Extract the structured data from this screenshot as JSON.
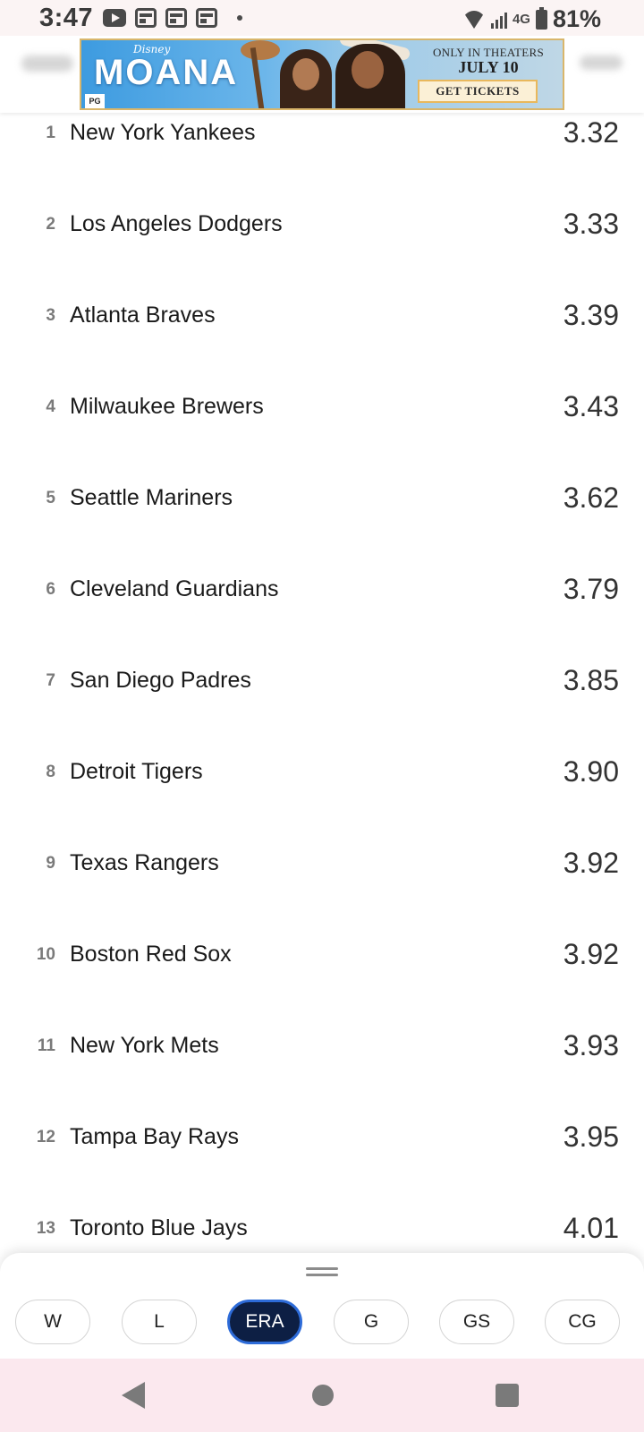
{
  "status_bar": {
    "time": "3:47",
    "network": "4G",
    "battery": "81%",
    "icons_left": [
      "youtube-icon",
      "news-icon",
      "news-icon",
      "news-icon",
      "dot-icon"
    ],
    "icons_right": [
      "wifi-icon",
      "signal-icon",
      "battery-icon"
    ]
  },
  "ad": {
    "brand": "Disney",
    "title": "MOANA",
    "rating": "PG",
    "tagline": "ONLY IN THEATERS",
    "date": "JULY 10",
    "cta": "GET TICKETS"
  },
  "rows": [
    {
      "rank": "1",
      "team": "New York Yankees",
      "value": "3.32"
    },
    {
      "rank": "2",
      "team": "Los Angeles Dodgers",
      "value": "3.33"
    },
    {
      "rank": "3",
      "team": "Atlanta Braves",
      "value": "3.39"
    },
    {
      "rank": "4",
      "team": "Milwaukee Brewers",
      "value": "3.43"
    },
    {
      "rank": "5",
      "team": "Seattle Mariners",
      "value": "3.62"
    },
    {
      "rank": "6",
      "team": "Cleveland Guardians",
      "value": "3.79"
    },
    {
      "rank": "7",
      "team": "San Diego Padres",
      "value": "3.85"
    },
    {
      "rank": "8",
      "team": "Detroit Tigers",
      "value": "3.90"
    },
    {
      "rank": "9",
      "team": "Texas Rangers",
      "value": "3.92"
    },
    {
      "rank": "10",
      "team": "Boston Red Sox",
      "value": "3.92"
    },
    {
      "rank": "11",
      "team": "New York Mets",
      "value": "3.93"
    },
    {
      "rank": "12",
      "team": "Tampa Bay Rays",
      "value": "3.95"
    },
    {
      "rank": "13",
      "team": "Toronto Blue Jays",
      "value": "4.01"
    }
  ],
  "stat_chips": [
    {
      "label": "W",
      "active": false
    },
    {
      "label": "L",
      "active": false
    },
    {
      "label": "ERA",
      "active": true
    },
    {
      "label": "G",
      "active": false
    },
    {
      "label": "GS",
      "active": false
    },
    {
      "label": "CG",
      "active": false
    }
  ],
  "nav": {
    "back_icon": "back-triangle-icon",
    "home_icon": "home-circle-icon",
    "recents_icon": "recents-square-icon"
  },
  "colors": {
    "active_chip_bg": "#0d1f44",
    "active_chip_border": "#2d6bd8",
    "nav_bg": "#fbe8ee",
    "status_bg": "#fbf4f4"
  }
}
